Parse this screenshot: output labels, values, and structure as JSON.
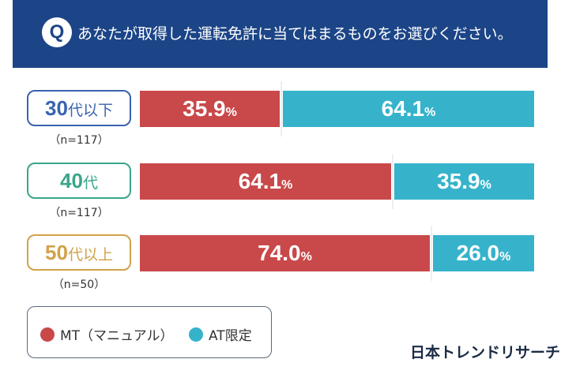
{
  "header": {
    "q_mark": "Q",
    "question": "あなたが取得した運転免許に当てはまるものをお選びください。"
  },
  "colors": {
    "header_bg": "#1c4587",
    "mt": "#c9484a",
    "at": "#36b3cb",
    "label_30": "#3a63b0",
    "label_40": "#3aa58a",
    "label_50": "#d1a24a"
  },
  "chart_data": {
    "type": "bar",
    "orientation": "horizontal",
    "stacked": true,
    "percent_sign": "%",
    "categories": [
      {
        "num": "30",
        "suffix": "代以下",
        "n": "（n=117）"
      },
      {
        "num": "40",
        "suffix": "代",
        "n": "（n=117）"
      },
      {
        "num": "50",
        "suffix": "代以上",
        "n": "（n=50）"
      }
    ],
    "series": [
      {
        "name": "MT（マニュアル）",
        "values": [
          35.9,
          64.1,
          74.0
        ],
        "labels": [
          "35.9",
          "64.1",
          "74.0"
        ]
      },
      {
        "name": "AT限定",
        "values": [
          64.1,
          35.9,
          26.0
        ],
        "labels": [
          "64.1",
          "35.9",
          "26.0"
        ]
      }
    ],
    "xlim": [
      0,
      100
    ],
    "legend_position": "bottom-left"
  },
  "legend": {
    "mt_label": "MT（マニュアル）",
    "at_label": "AT限定"
  },
  "brand": "日本トレンドリサーチ"
}
